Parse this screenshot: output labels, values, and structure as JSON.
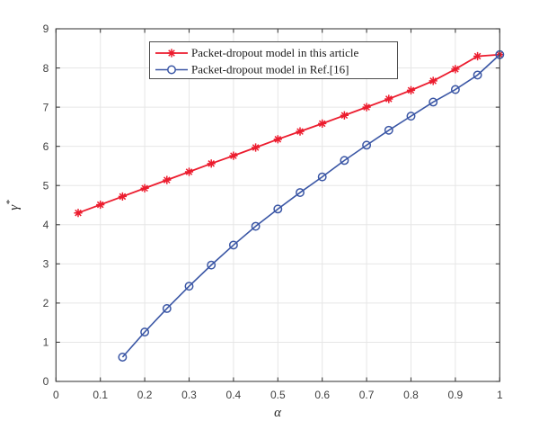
{
  "chart_data": {
    "type": "line",
    "title": "",
    "xlabel": "α",
    "ylabel": "γ",
    "ylabel_superscript": "*",
    "xlim": [
      0,
      1
    ],
    "ylim": [
      0,
      9
    ],
    "xticks": [
      0,
      0.1,
      0.2,
      0.3,
      0.4,
      0.5,
      0.6,
      0.7,
      0.8,
      0.9,
      1
    ],
    "yticks": [
      0,
      1,
      2,
      3,
      4,
      5,
      6,
      7,
      8,
      9
    ],
    "grid": true,
    "legend": {
      "position": "top-center-inside",
      "border_color": "#4d4d4d",
      "background": "#ffffff"
    },
    "colors": {
      "axis": "#404040",
      "grid": "#e6e6e6",
      "tick_label": "#404040"
    },
    "series": [
      {
        "name": "Packet-dropout model in this article",
        "color": "#ec1c2e",
        "marker": "asterisk",
        "x": [
          0.05,
          0.1,
          0.15,
          0.2,
          0.25,
          0.3,
          0.35,
          0.4,
          0.45,
          0.5,
          0.55,
          0.6,
          0.65,
          0.7,
          0.75,
          0.8,
          0.85,
          0.9,
          0.95,
          1.0
        ],
        "y": [
          4.3,
          4.51,
          4.72,
          4.93,
          5.14,
          5.35,
          5.56,
          5.76,
          5.97,
          6.18,
          6.38,
          6.58,
          6.79,
          7.0,
          7.21,
          7.43,
          7.67,
          7.97,
          8.3,
          8.34
        ]
      },
      {
        "name": "Packet-dropout model in Ref.[16]",
        "color": "#3a56a5",
        "marker": "circle",
        "x": [
          0.15,
          0.2,
          0.25,
          0.3,
          0.35,
          0.4,
          0.45,
          0.5,
          0.55,
          0.6,
          0.65,
          0.7,
          0.75,
          0.8,
          0.85,
          0.9,
          0.95,
          1.0
        ],
        "y": [
          0.62,
          1.26,
          1.86,
          2.43,
          2.97,
          3.48,
          3.96,
          4.4,
          4.82,
          5.22,
          5.64,
          6.03,
          6.41,
          6.77,
          7.13,
          7.45,
          7.82,
          8.34
        ]
      }
    ]
  }
}
